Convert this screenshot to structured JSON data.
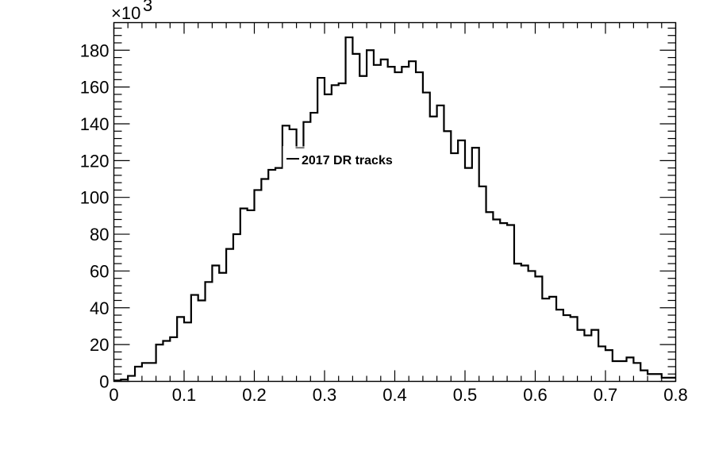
{
  "chart_data": {
    "type": "bar",
    "style": "step-histogram",
    "title": "",
    "xlabel": "",
    "ylabel": "",
    "y_multiplier_label": "×10",
    "y_multiplier_exponent": "3",
    "xlim": [
      0,
      0.8
    ],
    "ylim": [
      0,
      195
    ],
    "x_ticks": [
      0,
      0.1,
      0.2,
      0.3,
      0.4,
      0.5,
      0.6,
      0.7,
      0.8
    ],
    "x_tick_labels": [
      "0",
      "0.1",
      "0.2",
      "0.3",
      "0.4",
      "0.5",
      "0.6",
      "0.7",
      "0.8"
    ],
    "y_ticks": [
      0,
      20,
      40,
      60,
      80,
      100,
      120,
      140,
      160,
      180
    ],
    "y_tick_labels": [
      "0",
      "20",
      "40",
      "60",
      "80",
      "100",
      "120",
      "140",
      "160",
      "180"
    ],
    "grid": false,
    "legend_position": "center-left",
    "series": [
      {
        "name": "2017 DR tracks",
        "bin_width": 0.01,
        "x_start": 0,
        "values": [
          0.5,
          1,
          3,
          8,
          10,
          10,
          20,
          22,
          24,
          35,
          32,
          47,
          44,
          54,
          63,
          59,
          72,
          80,
          94,
          93,
          104,
          110,
          115,
          116,
          139,
          137,
          127,
          141,
          146,
          165,
          156,
          161,
          162,
          187,
          178,
          166,
          180,
          172,
          175,
          171,
          168,
          171,
          174,
          168,
          157,
          144,
          150,
          136,
          124,
          131,
          116,
          127,
          106,
          92,
          88,
          86,
          85,
          64,
          63,
          60,
          57,
          45,
          46,
          39,
          36,
          35,
          28,
          25,
          28,
          19,
          17,
          11,
          11,
          13,
          10,
          6,
          4,
          4,
          2,
          2
        ]
      }
    ],
    "colors": {
      "line": "#000000",
      "frame": "#000000",
      "background": "#ffffff"
    }
  }
}
